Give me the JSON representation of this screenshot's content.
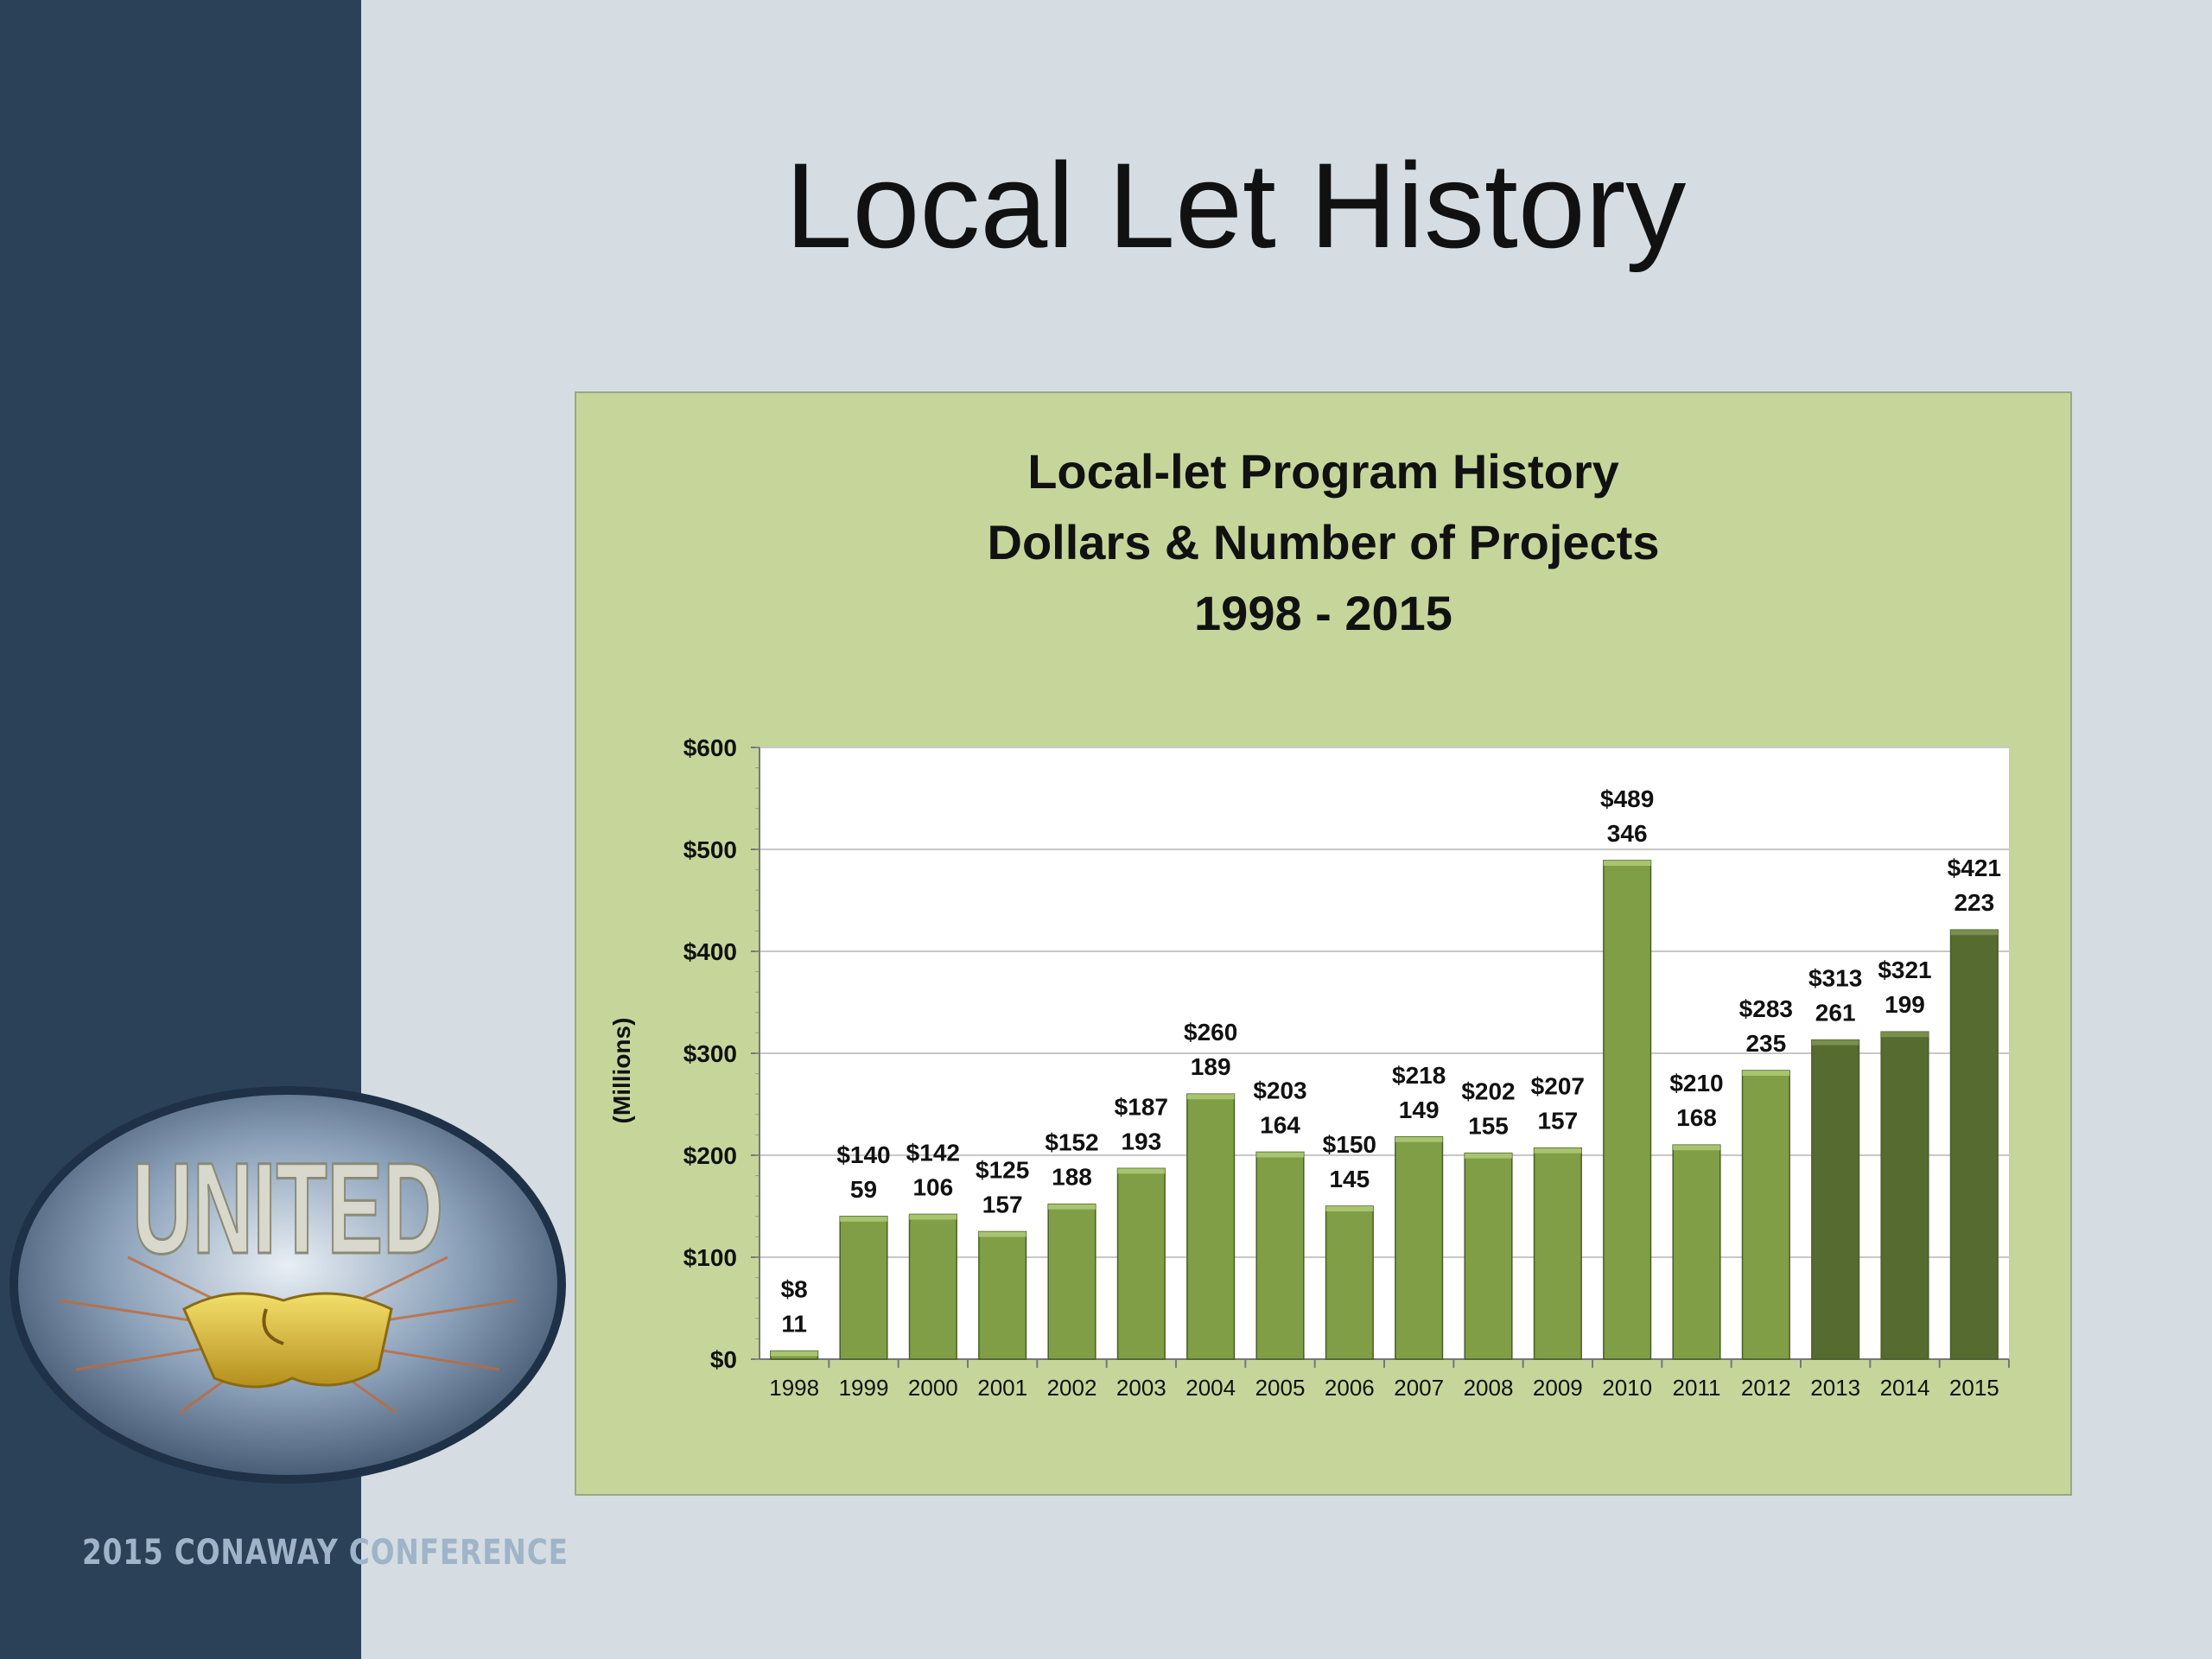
{
  "slide": {
    "title": "Local Let History",
    "footer": "2015 CONAWAY CONFERENCE",
    "logo_text": "UNITED"
  },
  "colors": {
    "sidebar": "#2b4158",
    "background": "#d5dde3",
    "chart_background": "#c6d69b",
    "bar_light": "#7f9e45",
    "bar_dark": "#556b2f"
  },
  "chart_data": {
    "type": "bar",
    "title": [
      "Local-let Program History",
      "Dollars & Number of Projects",
      "1998 - 2015"
    ],
    "ylabel": "(Millions)",
    "xlabel": "",
    "ylim": [
      0,
      600
    ],
    "yticks": [
      "$0",
      "$100",
      "$200",
      "$300",
      "$400",
      "$500",
      "$600"
    ],
    "grid": true,
    "categories": [
      "1998",
      "1999",
      "2000",
      "2001",
      "2002",
      "2003",
      "2004",
      "2005",
      "2006",
      "2007",
      "2008",
      "2009",
      "2010",
      "2011",
      "2012",
      "2013",
      "2014",
      "2015"
    ],
    "series": [
      {
        "values": [
          8,
          140,
          142,
          125,
          152,
          187,
          260,
          203,
          150,
          218,
          202,
          207,
          489,
          210,
          283,
          313,
          321,
          421
        ],
        "value_labels": [
          "$8",
          "$140",
          "$142",
          "$125",
          "$152",
          "$187",
          "$260",
          "$203",
          "$150",
          "$218",
          "$202",
          "$207",
          "$489",
          "$210",
          "$283",
          "$313",
          "$321",
          "$421"
        ]
      }
    ],
    "project_counts": [
      "11",
      "59",
      "106",
      "157",
      "188",
      "193",
      "189",
      "164",
      "145",
      "149",
      "155",
      "157",
      "346",
      "168",
      "235",
      "261",
      "199",
      "223"
    ],
    "dark_bars": [
      "2013",
      "2014",
      "2015"
    ]
  }
}
